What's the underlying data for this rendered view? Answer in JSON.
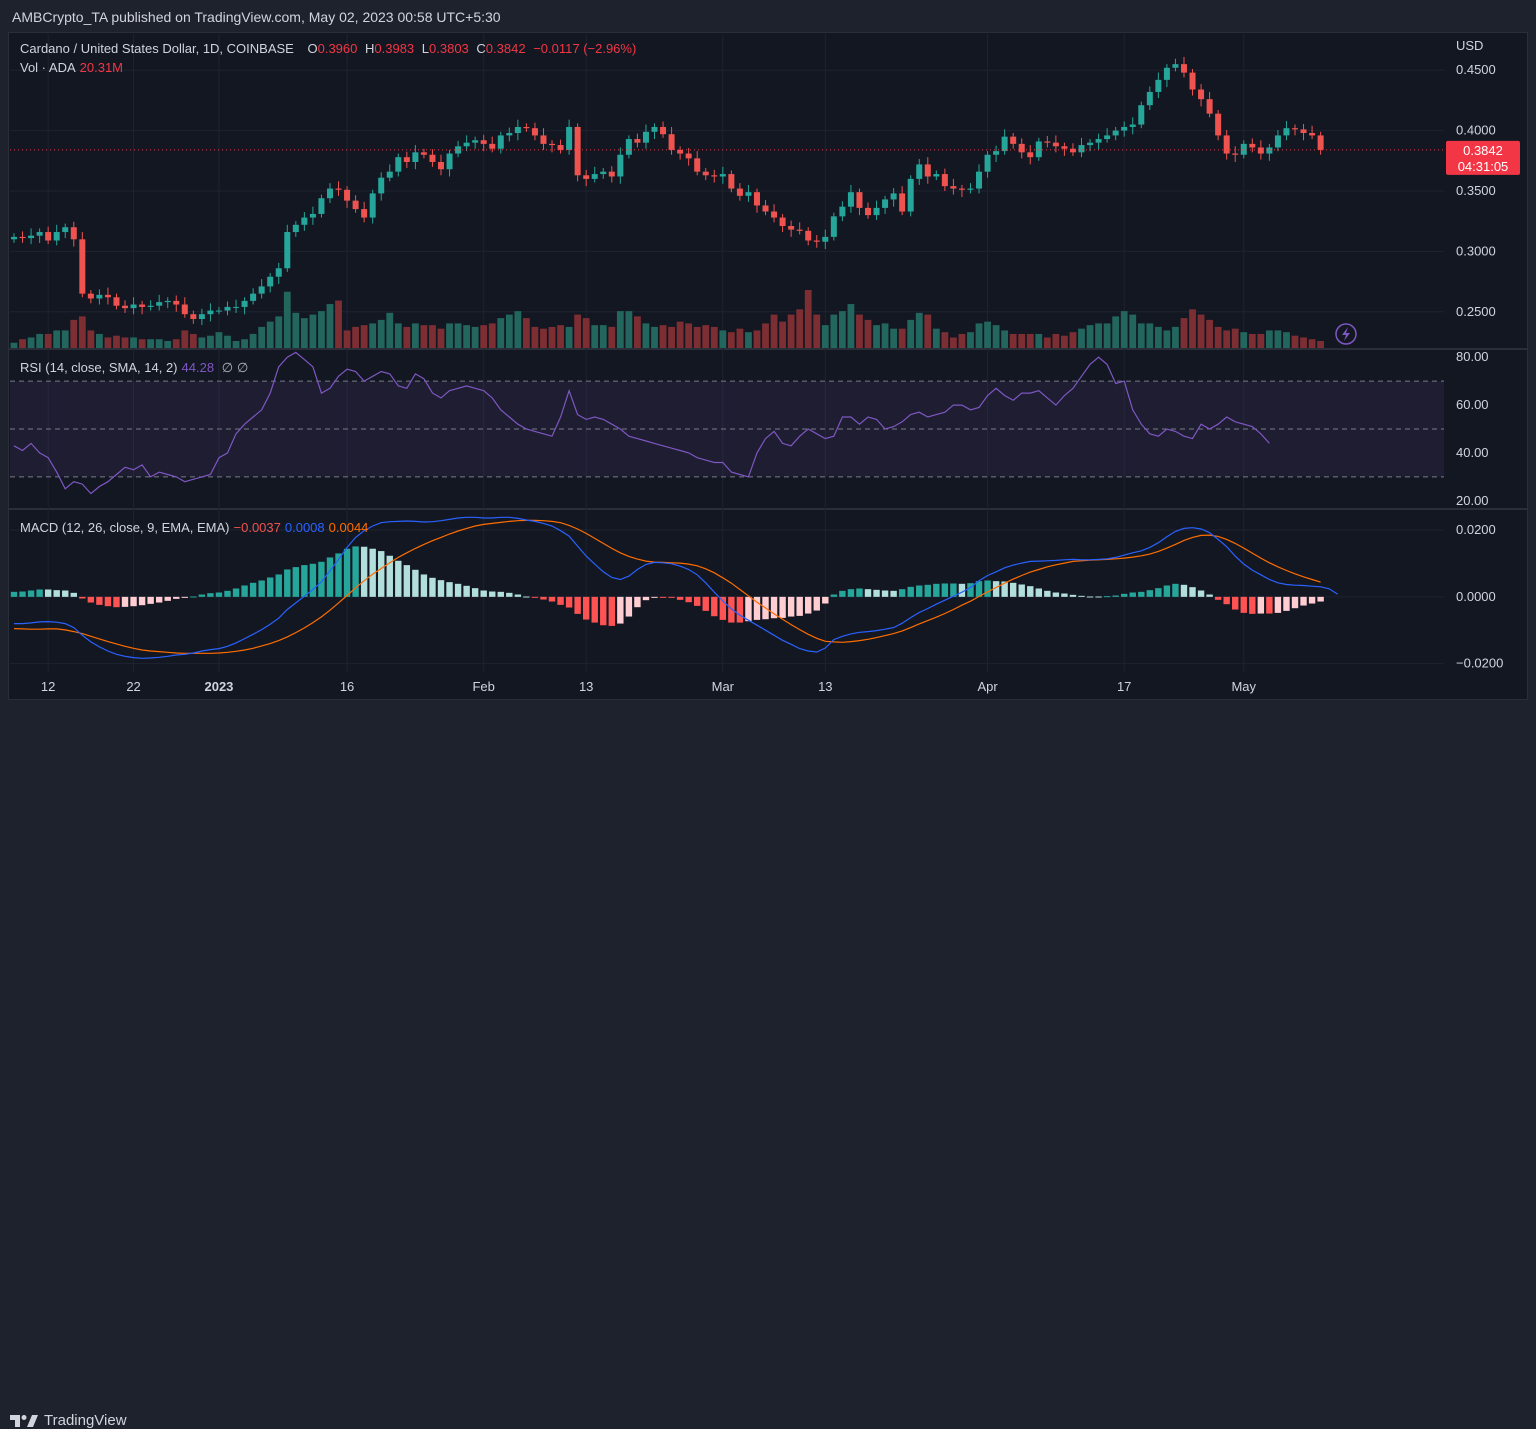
{
  "header": {
    "text": "AMBCrypto_TA published on TradingView.com, May 02, 2023 00:58 UTC+5:30"
  },
  "footer": {
    "brand": "TradingView"
  },
  "legend": {
    "symbol": "Cardano / United States Dollar, 1D, COINBASE",
    "o_label": "O",
    "o_value": "0.3960",
    "h_label": "H",
    "h_value": "0.3983",
    "l_label": "L",
    "l_value": "0.3803",
    "c_label": "C",
    "c_value": "0.3842",
    "change": "−0.0117 (−2.96%)",
    "vol_label": "Vol · ADA",
    "vol_value": "20.31M"
  },
  "rsi_legend": {
    "label": "RSI (14, close, SMA, 14, 2)",
    "value": "44.28",
    "extra1": "∅",
    "extra2": "∅"
  },
  "macd_legend": {
    "label": "MACD (12, 26, close, 9, EMA, EMA)",
    "hist": "−0.0037",
    "macd": "0.0008",
    "signal": "0.0044"
  },
  "price_badge": {
    "price": "0.3842",
    "countdown": "04:31:05"
  },
  "colors": {
    "up": "#26a69a",
    "down": "#ef5350",
    "rsi": "#7e57c2",
    "macd": "#2962ff",
    "signal": "#ff6d00",
    "bg": "#131722",
    "grid": "#1f2330",
    "text": "#d1d4dc"
  },
  "icons": {
    "lightning": "lightning-icon"
  },
  "chart_data": [
    {
      "type": "candlestick",
      "title": "Cardano / United States Dollar, 1D, COINBASE",
      "currency": "USD",
      "ylim": [
        0.22,
        0.475
      ],
      "y_ticks": [
        "0.4500",
        "0.4000",
        "0.3500",
        "0.3000",
        "0.2500"
      ],
      "x_tick_labels": [
        "12",
        "22",
        "2023",
        "16",
        "Feb",
        "13",
        "Mar",
        "13",
        "Apr",
        "17",
        "May"
      ],
      "x_tick_dates": [
        "2022-12-12",
        "2022-12-22",
        "2023-01-01",
        "2023-01-16",
        "2023-02-01",
        "2023-02-13",
        "2023-03-01",
        "2023-03-13",
        "2023-04-01",
        "2023-04-17",
        "2023-05-01"
      ],
      "start_date": "2022-12-08",
      "close": [
        0.312,
        0.311,
        0.313,
        0.316,
        0.309,
        0.316,
        0.32,
        0.31,
        0.265,
        0.261,
        0.264,
        0.262,
        0.255,
        0.253,
        0.256,
        0.254,
        0.255,
        0.258,
        0.259,
        0.256,
        0.248,
        0.244,
        0.248,
        0.251,
        0.251,
        0.254,
        0.254,
        0.259,
        0.265,
        0.271,
        0.279,
        0.286,
        0.316,
        0.322,
        0.328,
        0.331,
        0.344,
        0.352,
        0.351,
        0.342,
        0.335,
        0.328,
        0.348,
        0.361,
        0.366,
        0.378,
        0.374,
        0.382,
        0.38,
        0.374,
        0.368,
        0.381,
        0.387,
        0.39,
        0.392,
        0.389,
        0.385,
        0.396,
        0.398,
        0.403,
        0.402,
        0.396,
        0.389,
        0.388,
        0.384,
        0.403,
        0.363,
        0.36,
        0.364,
        0.366,
        0.362,
        0.38,
        0.393,
        0.39,
        0.399,
        0.403,
        0.397,
        0.384,
        0.381,
        0.377,
        0.366,
        0.363,
        0.362,
        0.364,
        0.352,
        0.346,
        0.349,
        0.338,
        0.333,
        0.328,
        0.321,
        0.318,
        0.317,
        0.309,
        0.308,
        0.312,
        0.329,
        0.337,
        0.349,
        0.336,
        0.33,
        0.336,
        0.343,
        0.348,
        0.333,
        0.36,
        0.372,
        0.362,
        0.364,
        0.354,
        0.352,
        0.351,
        0.352,
        0.366,
        0.38,
        0.383,
        0.395,
        0.389,
        0.382,
        0.378,
        0.391,
        0.39,
        0.387,
        0.385,
        0.382,
        0.388,
        0.39,
        0.393,
        0.396,
        0.4,
        0.403,
        0.405,
        0.421,
        0.432,
        0.442,
        0.452,
        0.455,
        0.448,
        0.434,
        0.426,
        0.414,
        0.396,
        0.381,
        0.38,
        0.389,
        0.386,
        0.381,
        0.386,
        0.396,
        0.402,
        0.401,
        0.398,
        0.396,
        0.384
      ],
      "volume": [
        3,
        5,
        6,
        8,
        8,
        10,
        10,
        16,
        18,
        10,
        8,
        6,
        7,
        6,
        6,
        5,
        5,
        5,
        4,
        5,
        10,
        8,
        6,
        7,
        9,
        7,
        4,
        5,
        8,
        12,
        15,
        18,
        32,
        20,
        17,
        19,
        21,
        25,
        27,
        10,
        12,
        13,
        14,
        16,
        20,
        14,
        12,
        14,
        13,
        13,
        11,
        14,
        14,
        13,
        12,
        13,
        14,
        17,
        19,
        21,
        17,
        12,
        11,
        12,
        13,
        12,
        19,
        17,
        13,
        13,
        12,
        21,
        21,
        18,
        14,
        12,
        13,
        12,
        15,
        14,
        12,
        13,
        12,
        10,
        9,
        11,
        9,
        10,
        14,
        19,
        15,
        19,
        22,
        33,
        19,
        13,
        19,
        21,
        25,
        19,
        16,
        13,
        14,
        11,
        11,
        16,
        20,
        19,
        11,
        9,
        6,
        8,
        9,
        14,
        15,
        13,
        10,
        8,
        8,
        8,
        8,
        6,
        8,
        7,
        9,
        11,
        13,
        14,
        14,
        18,
        21,
        19,
        14,
        14,
        12,
        10,
        12,
        17,
        22,
        19,
        16,
        12,
        10,
        11,
        9,
        8,
        8,
        10,
        10,
        9,
        7,
        6,
        5,
        4
      ]
    },
    {
      "type": "line",
      "title": "RSI (14, close, SMA, 14, 2)",
      "ylim": [
        17,
        83
      ],
      "y_ticks": [
        "80.00",
        "60.00",
        "40.00",
        "20.00"
      ],
      "bands": [
        30,
        50,
        70
      ],
      "values": [
        43,
        41,
        44,
        40,
        38,
        32,
        25,
        28,
        27,
        23,
        26,
        28,
        31,
        34,
        33,
        35,
        30,
        32,
        31,
        30,
        28,
        29,
        30,
        31,
        38,
        40,
        48,
        52,
        55,
        58,
        65,
        76,
        80,
        82,
        79,
        76,
        65,
        67,
        72,
        75,
        74,
        70,
        72,
        74,
        73,
        68,
        67,
        73,
        71,
        65,
        63,
        66,
        67,
        68,
        67,
        66,
        63,
        58,
        55,
        52,
        50,
        49,
        48,
        47,
        55,
        66,
        56,
        54,
        55,
        54,
        52,
        50,
        47,
        46,
        45,
        44,
        43,
        42,
        41,
        40,
        38,
        37,
        36,
        36,
        32,
        31,
        30,
        40,
        46,
        49,
        44,
        43,
        47,
        50,
        48,
        46,
        47,
        55,
        55,
        52,
        55,
        54,
        50,
        51,
        53,
        56,
        57,
        55,
        56,
        57,
        60,
        60,
        58,
        59,
        64,
        67,
        64,
        62,
        65,
        65,
        66,
        63,
        60,
        64,
        67,
        72,
        77,
        80,
        77,
        69,
        70,
        58,
        52,
        48,
        47,
        50,
        49,
        47,
        46,
        52,
        50,
        52,
        55,
        53,
        52,
        51,
        48,
        44
      ],
      "rsi_ma": [
        48,
        47,
        46,
        45,
        43,
        41,
        39,
        37,
        35,
        34,
        33,
        32,
        31,
        31,
        31,
        31,
        31,
        31,
        31,
        31,
        31,
        31,
        31,
        31,
        32,
        33,
        35,
        37,
        39,
        41,
        44,
        48,
        52,
        55,
        58,
        61,
        63,
        65,
        67,
        68,
        69,
        70,
        70,
        70,
        70,
        70,
        70,
        70,
        70,
        69,
        68,
        68,
        68,
        68,
        67,
        66,
        65,
        64,
        63,
        62,
        61,
        60,
        59,
        58,
        58,
        58,
        57,
        57,
        56,
        56,
        55,
        54,
        53,
        52,
        51,
        50,
        49,
        48,
        47,
        46,
        45,
        44,
        43,
        42,
        41,
        40,
        39,
        39,
        40,
        40,
        41,
        41,
        42,
        43,
        44,
        45,
        46,
        47,
        48,
        49,
        50,
        51,
        51,
        52,
        53,
        53,
        54,
        54,
        55,
        55,
        56,
        57,
        57,
        58,
        59,
        60,
        61,
        61,
        62,
        63,
        63,
        64,
        64,
        64,
        64,
        65,
        66,
        67,
        67,
        67,
        66,
        65,
        64,
        62,
        60,
        59,
        57,
        55,
        53,
        52,
        51,
        51,
        51,
        51,
        50,
        50,
        50,
        49
      ]
    },
    {
      "type": "line",
      "title": "MACD (12, 26, close, 9, EMA, EMA)",
      "ylim": [
        -0.0225,
        0.026
      ],
      "y_ticks": [
        "0.0200",
        "0.0000",
        "−0.0200"
      ],
      "macd_line": [
        -0.008,
        -0.008,
        -0.0078,
        -0.0075,
        -0.0074,
        -0.0076,
        -0.008,
        -0.0092,
        -0.0115,
        -0.0135,
        -0.015,
        -0.0162,
        -0.0172,
        -0.0178,
        -0.0182,
        -0.0184,
        -0.0183,
        -0.0181,
        -0.0178,
        -0.0174,
        -0.0172,
        -0.0168,
        -0.0162,
        -0.0158,
        -0.0155,
        -0.0148,
        -0.0138,
        -0.0125,
        -0.0112,
        -0.0098,
        -0.0082,
        -0.0064,
        -0.0038,
        -0.0018,
        0.0002,
        0.0022,
        0.0045,
        0.0078,
        0.0112,
        0.0148,
        0.0178,
        0.0198,
        0.0212,
        0.0222,
        0.0225,
        0.0226,
        0.0227,
        0.0226,
        0.0224,
        0.0225,
        0.0228,
        0.0232,
        0.0236,
        0.0238,
        0.0238,
        0.0236,
        0.0236,
        0.0238,
        0.0238,
        0.0235,
        0.023,
        0.0226,
        0.022,
        0.0212,
        0.0198,
        0.0182,
        0.0152,
        0.0122,
        0.0098,
        0.0075,
        0.0058,
        0.0052,
        0.0062,
        0.0082,
        0.0097,
        0.0103,
        0.0102,
        0.0099,
        0.0092,
        0.0082,
        0.0066,
        0.0042,
        0.0014,
        -0.0012,
        -0.0036,
        -0.0055,
        -0.007,
        -0.0085,
        -0.01,
        -0.0115,
        -0.013,
        -0.0142,
        -0.0155,
        -0.0162,
        -0.0165,
        -0.0153,
        -0.0128,
        -0.0118,
        -0.0111,
        -0.0106,
        -0.0104,
        -0.0101,
        -0.0097,
        -0.0092,
        -0.0079,
        -0.0062,
        -0.0047,
        -0.0035,
        -0.0022,
        -0.001,
        0.0002,
        0.0014,
        0.0028,
        0.0048,
        0.0064,
        0.0075,
        0.0087,
        0.0095,
        0.0101,
        0.0106,
        0.0107,
        0.0108,
        0.0109,
        0.0111,
        0.0112,
        0.0111,
        0.0111,
        0.0112,
        0.0114,
        0.0118,
        0.0125,
        0.0132,
        0.0138,
        0.0148,
        0.0162,
        0.018,
        0.0196,
        0.0205,
        0.0207,
        0.0203,
        0.0192,
        0.0172,
        0.015,
        0.0122,
        0.0098,
        0.008,
        0.0066,
        0.0052,
        0.0042,
        0.0037,
        0.0035,
        0.0034,
        0.0032,
        0.003,
        0.0024,
        0.0008
      ],
      "signal_line": [
        -0.0095,
        -0.0096,
        -0.0097,
        -0.0097,
        -0.0096,
        -0.0096,
        -0.0099,
        -0.0104,
        -0.011,
        -0.0118,
        -0.0126,
        -0.0134,
        -0.0141,
        -0.0148,
        -0.0154,
        -0.0159,
        -0.0162,
        -0.0164,
        -0.0166,
        -0.0168,
        -0.0169,
        -0.0169,
        -0.0169,
        -0.0169,
        -0.0168,
        -0.0166,
        -0.0163,
        -0.0159,
        -0.0154,
        -0.0147,
        -0.014,
        -0.0131,
        -0.012,
        -0.0107,
        -0.0093,
        -0.0077,
        -0.006,
        -0.004,
        -0.0018,
        0.0004,
        0.0027,
        0.0048,
        0.0068,
        0.0085,
        0.0102,
        0.0118,
        0.0132,
        0.0145,
        0.0157,
        0.0168,
        0.0178,
        0.0188,
        0.0197,
        0.0205,
        0.0212,
        0.0217,
        0.022,
        0.0223,
        0.0226,
        0.0228,
        0.0229,
        0.0229,
        0.0228,
        0.0226,
        0.0222,
        0.0214,
        0.0203,
        0.019,
        0.0175,
        0.016,
        0.0145,
        0.0132,
        0.0121,
        0.0113,
        0.0107,
        0.0104,
        0.0103,
        0.0102,
        0.0101,
        0.0098,
        0.0093,
        0.0084,
        0.0072,
        0.0057,
        0.0041,
        0.0022,
        0.0003,
        -0.0016,
        -0.0033,
        -0.0051,
        -0.0067,
        -0.0083,
        -0.0098,
        -0.0112,
        -0.0124,
        -0.0133,
        -0.0135,
        -0.0136,
        -0.0134,
        -0.0131,
        -0.0127,
        -0.0122,
        -0.0116,
        -0.011,
        -0.0102,
        -0.0092,
        -0.0081,
        -0.0071,
        -0.0061,
        -0.005,
        -0.0038,
        -0.0025,
        -0.0013,
        0.0001,
        0.0015,
        0.0028,
        0.0041,
        0.0053,
        0.0064,
        0.0074,
        0.0082,
        0.009,
        0.0096,
        0.0101,
        0.0106,
        0.0108,
        0.011,
        0.0111,
        0.0112,
        0.0114,
        0.0116,
        0.0119,
        0.0123,
        0.0128,
        0.0136,
        0.0146,
        0.0157,
        0.0169,
        0.0178,
        0.0184,
        0.0185,
        0.0181,
        0.0172,
        0.016,
        0.0146,
        0.0131,
        0.0116,
        0.0102,
        0.009,
        0.0079,
        0.0069,
        0.006,
        0.0052,
        0.0044
      ]
    }
  ]
}
